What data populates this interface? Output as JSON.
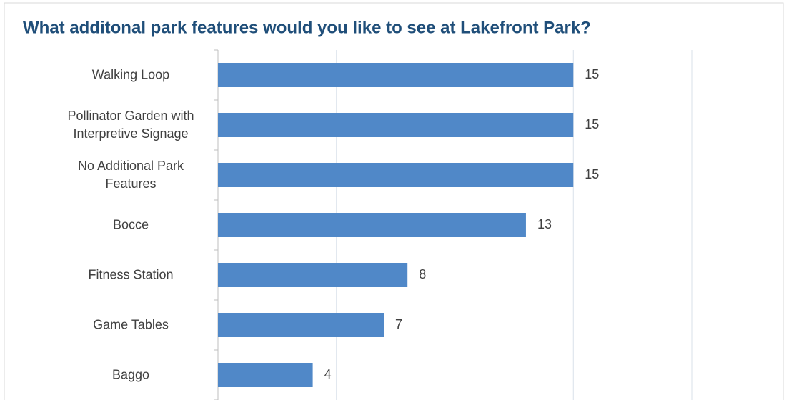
{
  "chart_data": {
    "type": "bar",
    "orientation": "horizontal",
    "title": "What additonal park features would you like to see at Lakefront Park?",
    "categories": [
      "Walking Loop",
      "Pollinator Garden with Interpretive Signage",
      "No Additional Park Features",
      "Bocce",
      "Fitness Station",
      "Game Tables",
      "Baggo"
    ],
    "values": [
      15,
      15,
      15,
      13,
      8,
      7,
      4
    ],
    "color": "#5088c8",
    "xlim": [
      0,
      20
    ],
    "xticks": [
      0,
      5,
      10,
      15,
      20
    ],
    "grid": true
  }
}
